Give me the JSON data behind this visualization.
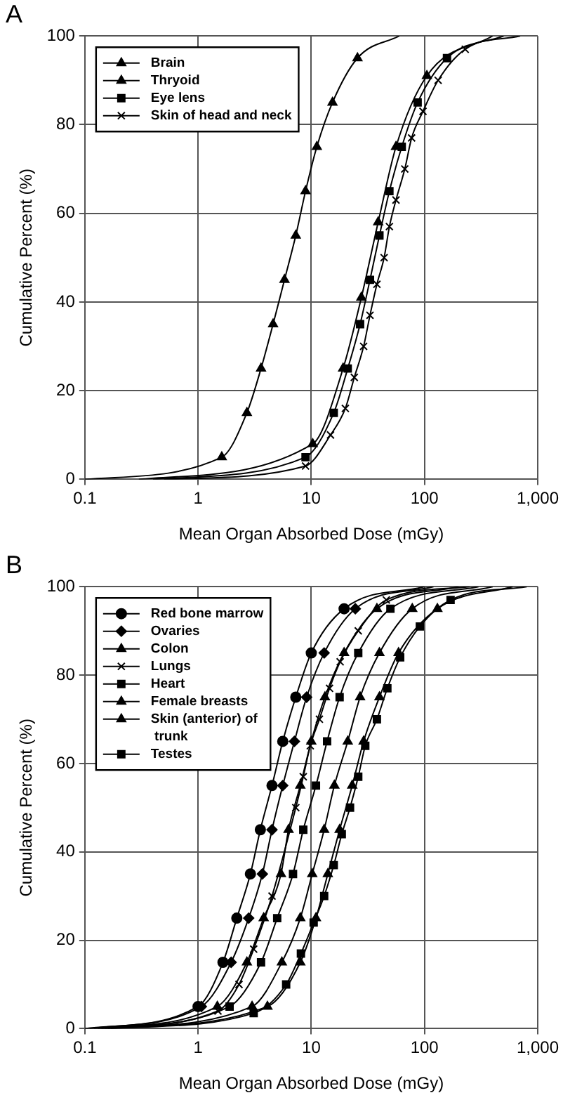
{
  "chart_data": [
    {
      "type": "line",
      "title": "A",
      "xlabel": "Mean Organ Absorbed Dose (mGy)",
      "ylabel": "Cumulative Percent (%)",
      "log": "x",
      "xlim": [
        0.1,
        1000
      ],
      "xticks": [
        0.1,
        1,
        10,
        100,
        {
          "value": 1000,
          "label": "1,000"
        }
      ],
      "ylim": [
        0,
        100
      ],
      "yticks": [
        0,
        20,
        40,
        60,
        80,
        100
      ],
      "grid": true,
      "legend": "top left",
      "series": [
        {
          "name": "Brain",
          "color": "#000000",
          "marker": "triangle",
          "x": [
            0.1,
            1.62,
            2.7,
            3.6,
            4.6,
            5.8,
            7.3,
            8.9,
            11.2,
            15.4,
            25.6,
            60
          ],
          "values": [
            0,
            5,
            15,
            25,
            35,
            45,
            55,
            65,
            75,
            85,
            95,
            100
          ]
        },
        {
          "name": "Thryoid",
          "color": "#000000",
          "marker": "triangle",
          "x": [
            0.3,
            10.3,
            19.1,
            27.7,
            39,
            56,
            105,
            400
          ],
          "values": [
            0,
            8,
            25,
            41,
            58,
            75,
            91,
            100
          ]
        },
        {
          "name": "Eye lens",
          "color": "#000000",
          "marker": "square",
          "x": [
            0.4,
            8.9,
            15.8,
            21,
            27,
            33,
            40,
            49,
            63,
            87,
            158,
            500
          ],
          "values": [
            0,
            5,
            15,
            25,
            35,
            45,
            55,
            65,
            75,
            85,
            95,
            100
          ]
        },
        {
          "name": "Skin of head and neck",
          "color": "#000000",
          "marker": "cross",
          "x": [
            0.5,
            8.9,
            14.8,
            20,
            24,
            29,
            33,
            38,
            44,
            49,
            56,
            67,
            77,
            97,
            132,
            229,
            700
          ],
          "values": [
            0,
            3,
            10,
            16,
            23,
            30,
            37,
            44,
            50,
            57,
            63,
            70,
            77,
            83,
            90,
            97,
            100
          ]
        }
      ]
    },
    {
      "type": "line",
      "title": "B",
      "xlabel": "Mean Organ Absorbed Dose (mGy)",
      "ylabel": "Cumulative Percent (%)",
      "log": "x",
      "xlim": [
        0.1,
        1000
      ],
      "xticks": [
        0.1,
        1,
        10,
        100,
        {
          "value": 1000,
          "label": "1,000"
        }
      ],
      "ylim": [
        0,
        100
      ],
      "yticks": [
        0,
        20,
        40,
        60,
        80,
        100
      ],
      "grid": true,
      "legend": "top left",
      "series": [
        {
          "name": "Red bone marrow",
          "color": "#000000",
          "marker": "circle",
          "x": [
            0.1,
            1.0,
            1.66,
            2.2,
            2.9,
            3.55,
            4.5,
            5.6,
            7.3,
            10,
            19.5,
            100
          ],
          "values": [
            0,
            5,
            15,
            25,
            35,
            45,
            55,
            65,
            75,
            85,
            95,
            100
          ]
        },
        {
          "name": "Ovaries",
          "color": "#000000",
          "marker": "diamond",
          "x": [
            0.11,
            1.07,
            1.96,
            2.8,
            3.7,
            4.5,
            5.6,
            7.1,
            9.1,
            13,
            24.5,
            120
          ],
          "values": [
            0,
            5,
            15,
            25,
            35,
            45,
            55,
            65,
            75,
            85,
            95,
            100
          ]
        },
        {
          "name": "Colon",
          "color": "#000000",
          "marker": "triangle",
          "x": [
            0.12,
            1.48,
            2.7,
            3.8,
            5.4,
            6.3,
            8,
            10,
            13.2,
            19.5,
            38,
            200
          ],
          "values": [
            0,
            5,
            15,
            25,
            35,
            45,
            55,
            65,
            75,
            85,
            95,
            100
          ]
        },
        {
          "name": "Lungs",
          "color": "#000000",
          "marker": "cross",
          "x": [
            0.13,
            1.5,
            2.3,
            3.1,
            4.5,
            7.3,
            8.5,
            9.8,
            11.8,
            14.5,
            18,
            26,
            46,
            250
          ],
          "values": [
            0,
            4,
            10,
            18,
            30,
            50,
            57,
            64,
            70,
            77,
            83,
            90,
            97,
            100
          ]
        },
        {
          "name": "Heart",
          "color": "#000000",
          "marker": "square",
          "x": [
            0.14,
            1.9,
            3.6,
            5.0,
            6.9,
            8.5,
            11,
            13.8,
            17.8,
            26,
            50,
            300
          ],
          "values": [
            0,
            5,
            15,
            25,
            35,
            45,
            55,
            65,
            75,
            85,
            95,
            100
          ]
        },
        {
          "name": "Female breasts",
          "color": "#000000",
          "marker": "triangle",
          "x": [
            0.15,
            3.0,
            5.5,
            8,
            10.2,
            13,
            16,
            21,
            27,
            40,
            78,
            400
          ],
          "values": [
            0,
            5,
            15,
            25,
            35,
            45,
            55,
            65,
            75,
            85,
            95,
            100
          ]
        },
        {
          "name": "Skin (anterior) of trunk",
          "color": "#000000",
          "marker": "triangle",
          "x": [
            0.16,
            4.1,
            8,
            11,
            14,
            17.8,
            23,
            29,
            40,
            59,
            130,
            600
          ],
          "values": [
            0,
            5,
            15,
            25,
            35,
            45,
            55,
            65,
            75,
            85,
            95,
            100
          ]
        },
        {
          "name": "Testes",
          "color": "#000000",
          "marker": "square",
          "x": [
            0.17,
            3.1,
            6.0,
            8.1,
            10.5,
            13,
            15.8,
            18.6,
            22,
            26,
            30,
            38,
            47,
            61,
            91,
            170,
            800
          ],
          "values": [
            0,
            3.5,
            10,
            17,
            24,
            30,
            37,
            44,
            50,
            57,
            64,
            70,
            77,
            84,
            91,
            97,
            100
          ]
        }
      ]
    }
  ]
}
